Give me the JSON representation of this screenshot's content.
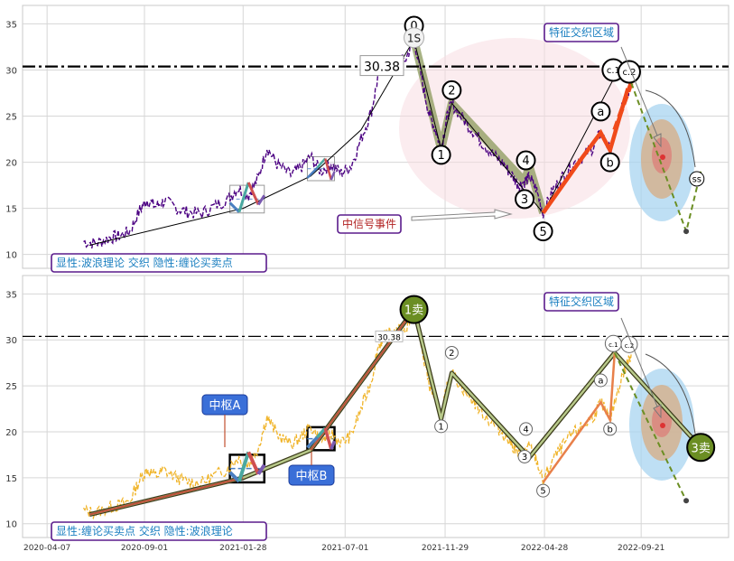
{
  "chart_data": [
    {
      "type": "line",
      "panel": "top",
      "ylim": [
        8.5,
        37
      ],
      "yticks": [
        10,
        15,
        20,
        25,
        30,
        35
      ],
      "grid": true,
      "hline": {
        "value": 30.38,
        "label": "30.38",
        "style": "dash-dot"
      },
      "caption": "显性:波浪理论 交织 隐性:缠论买卖点",
      "annotations": [
        {
          "text": "特征交织区域"
        },
        {
          "text": "中信号事件"
        }
      ],
      "wave_labels": [
        {
          "text": "0",
          "x": "2021-10-13",
          "y": 34.8
        },
        {
          "text": "1S",
          "x": "2021-10-13",
          "y": 33.5
        },
        {
          "text": "1",
          "x": "2021-11-23",
          "y": 20.8
        },
        {
          "text": "2",
          "x": "2021-12-09",
          "y": 27.8
        },
        {
          "text": "3",
          "x": "2022-03-29",
          "y": 16.0
        },
        {
          "text": "4",
          "x": "2022-03-31",
          "y": 20.2
        },
        {
          "text": "5",
          "x": "2022-04-26",
          "y": 12.5
        },
        {
          "text": "a",
          "x": "2022-07-22",
          "y": 25.5
        },
        {
          "text": "b",
          "x": "2022-08-05",
          "y": 20.0
        },
        {
          "text": "c.1",
          "x": "2022-08-10",
          "y": 30.0
        },
        {
          "text": "c.2",
          "x": "2022-09-03",
          "y": 29.8
        },
        {
          "text": "ss",
          "x": "2022-12-14",
          "y": 18.2
        }
      ],
      "price_series": [
        [
          "2020-06-01",
          11.4
        ],
        [
          "2020-06-20",
          11.2
        ],
        [
          "2020-07-10",
          11.8
        ],
        [
          "2020-07-25",
          12.0
        ],
        [
          "2020-08-10",
          12.5
        ],
        [
          "2020-08-25",
          14.8
        ],
        [
          "2020-09-05",
          15.9
        ],
        [
          "2020-09-18",
          15.2
        ],
        [
          "2020-10-01",
          15.8
        ],
        [
          "2020-10-20",
          15.0
        ],
        [
          "2020-11-05",
          14.6
        ],
        [
          "2020-11-25",
          14.4
        ],
        [
          "2020-12-15",
          15.2
        ],
        [
          "2021-01-05",
          16.0
        ],
        [
          "2021-01-20",
          17.2
        ],
        [
          "2021-02-05",
          16.4
        ],
        [
          "2021-02-20",
          18.3
        ],
        [
          "2021-03-05",
          21.6
        ],
        [
          "2021-03-20",
          19.8
        ],
        [
          "2021-04-10",
          18.6
        ],
        [
          "2021-04-25",
          19.4
        ],
        [
          "2021-05-10",
          20.6
        ],
        [
          "2021-05-25",
          19.0
        ],
        [
          "2021-06-10",
          19.8
        ],
        [
          "2021-06-25",
          18.8
        ],
        [
          "2021-07-10",
          19.6
        ],
        [
          "2021-07-25",
          22.5
        ],
        [
          "2021-08-10",
          25.6
        ],
        [
          "2021-08-20",
          29.3
        ],
        [
          "2021-09-01",
          30.6
        ],
        [
          "2021-09-15",
          30.9
        ],
        [
          "2021-10-01",
          31.2
        ],
        [
          "2021-10-13",
          33.5
        ],
        [
          "2021-10-25",
          28.8
        ],
        [
          "2021-11-05",
          25.2
        ],
        [
          "2021-11-15",
          23.4
        ],
        [
          "2021-11-23",
          21.4
        ],
        [
          "2021-12-01",
          24.6
        ],
        [
          "2021-12-09",
          26.4
        ],
        [
          "2021-12-25",
          24.8
        ],
        [
          "2022-01-10",
          23.4
        ],
        [
          "2022-01-25",
          22.0
        ],
        [
          "2022-02-10",
          20.8
        ],
        [
          "2022-02-25",
          19.8
        ],
        [
          "2022-03-10",
          18.6
        ],
        [
          "2022-03-20",
          17.5
        ],
        [
          "2022-03-29",
          17.9
        ],
        [
          "2022-04-05",
          18.4
        ],
        [
          "2022-04-15",
          17.2
        ],
        [
          "2022-04-26",
          14.5
        ],
        [
          "2022-05-10",
          16.9
        ],
        [
          "2022-05-25",
          18.4
        ],
        [
          "2022-06-10",
          19.8
        ],
        [
          "2022-06-25",
          20.6
        ],
        [
          "2022-07-10",
          21.6
        ],
        [
          "2022-07-22",
          23.2
        ],
        [
          "2022-08-05",
          21.3
        ],
        [
          "2022-08-20",
          25.4
        ],
        [
          "2022-09-01",
          27.6
        ],
        [
          "2022-09-06",
          28.6
        ]
      ],
      "wave_path": [
        [
          "2021-10-13",
          33.3
        ],
        [
          "2021-11-23",
          21.4
        ],
        [
          "2021-12-09",
          26.4
        ],
        [
          "2022-03-29",
          17.9
        ],
        [
          "2022-04-05",
          19.6
        ],
        [
          "2022-04-26",
          14.5
        ]
      ],
      "trend_line": [
        [
          "2020-06-10",
          11.0
        ],
        [
          "2021-01-28",
          15.0
        ],
        [
          "2021-05-10",
          18.5
        ],
        [
          "2021-07-25",
          23.5
        ],
        [
          "2021-10-13",
          33.3
        ],
        [
          "2021-11-23",
          21.4
        ],
        [
          "2021-12-09",
          26.4
        ],
        [
          "2022-04-26",
          14.5
        ],
        [
          "2022-08-10",
          29.0
        ]
      ],
      "forecast": [
        [
          "2022-09-06",
          28.6
        ],
        [
          "2022-11-28",
          12.5
        ],
        [
          "2022-12-20",
          19.0
        ]
      ],
      "zones": [
        {
          "x0": "2021-01-08",
          "x1": "2021-03-01",
          "y0": 14.5,
          "y1": 17.5
        },
        {
          "x0": "2021-05-05",
          "x1": "2021-06-15",
          "y0": 18.0,
          "y1": 20.6
        }
      ]
    },
    {
      "type": "line",
      "panel": "bottom",
      "ylim": [
        8.5,
        37
      ],
      "yticks": [
        10,
        15,
        20,
        25,
        30,
        35
      ],
      "xticks": [
        "2020-04-07",
        "2020-09-01",
        "2021-01-28",
        "2021-07-01",
        "2021-11-29",
        "2022-04-28",
        "2022-09-21"
      ],
      "grid": true,
      "hline": {
        "value": 30.38,
        "label": "30.38",
        "style": "dash-dot"
      },
      "caption": "显性:缠论买卖点 交织 隐性:波浪理论",
      "annotations": [
        {
          "text": "特征交织区域"
        },
        {
          "text": "中枢A"
        },
        {
          "text": "中枢B"
        }
      ],
      "signals": [
        {
          "text": "1卖",
          "x": "2021-10-13",
          "y": 33.3
        },
        {
          "text": "3卖",
          "x": "2022-12-20",
          "y": 18.3
        }
      ],
      "wave_labels": [
        {
          "text": "2",
          "x": "2021-12-09",
          "y": 28.6
        },
        {
          "text": "1",
          "x": "2021-11-23",
          "y": 20.6
        },
        {
          "text": "4",
          "x": "2022-03-31",
          "y": 20.3
        },
        {
          "text": "3",
          "x": "2022-03-29",
          "y": 17.3
        },
        {
          "text": "5",
          "x": "2022-04-26",
          "y": 13.6
        },
        {
          "text": "a",
          "x": "2022-07-22",
          "y": 25.6
        },
        {
          "text": "b",
          "x": "2022-08-05",
          "y": 20.3
        },
        {
          "text": "c.1",
          "x": "2022-08-10",
          "y": 29.6
        },
        {
          "text": "c.2",
          "x": "2022-09-03",
          "y": 29.5
        }
      ],
      "bi_path": [
        [
          "2020-06-10",
          11.0
        ],
        [
          "2021-01-28",
          15.0
        ],
        [
          "2021-05-10",
          18.0
        ],
        [
          "2021-10-13",
          33.3
        ],
        [
          "2021-11-23",
          21.4
        ],
        [
          "2021-12-09",
          26.4
        ],
        [
          "2022-04-05",
          17.2
        ],
        [
          "2022-08-12",
          28.6
        ],
        [
          "2022-12-20",
          18.3
        ]
      ],
      "zones": [
        {
          "name": "中枢A",
          "x0": "2021-01-08",
          "x1": "2021-03-01",
          "y0": 14.5,
          "y1": 17.5
        },
        {
          "name": "中枢B",
          "x0": "2021-05-05",
          "x1": "2021-06-15",
          "y0": 18.0,
          "y1": 20.5
        }
      ]
    }
  ],
  "colors": {
    "price_top": "#4b0082",
    "price_bottom": "#f0b429",
    "wave_fill": "#8b9a5b",
    "impulse": "#f04a1a",
    "forecast": "#6b8e23",
    "ellipse_pink": "#f7dce2",
    "ellipse_blue": "#a8d4f0",
    "ellipse_brown": "#d9a87a",
    "label_box_border": "#5a1b8c",
    "label_text_blue": "#1a7fc0",
    "label_text_red": "#b22222",
    "sell_signal": "#6b8e23",
    "zone_label_bg": "#3a6fd8"
  }
}
